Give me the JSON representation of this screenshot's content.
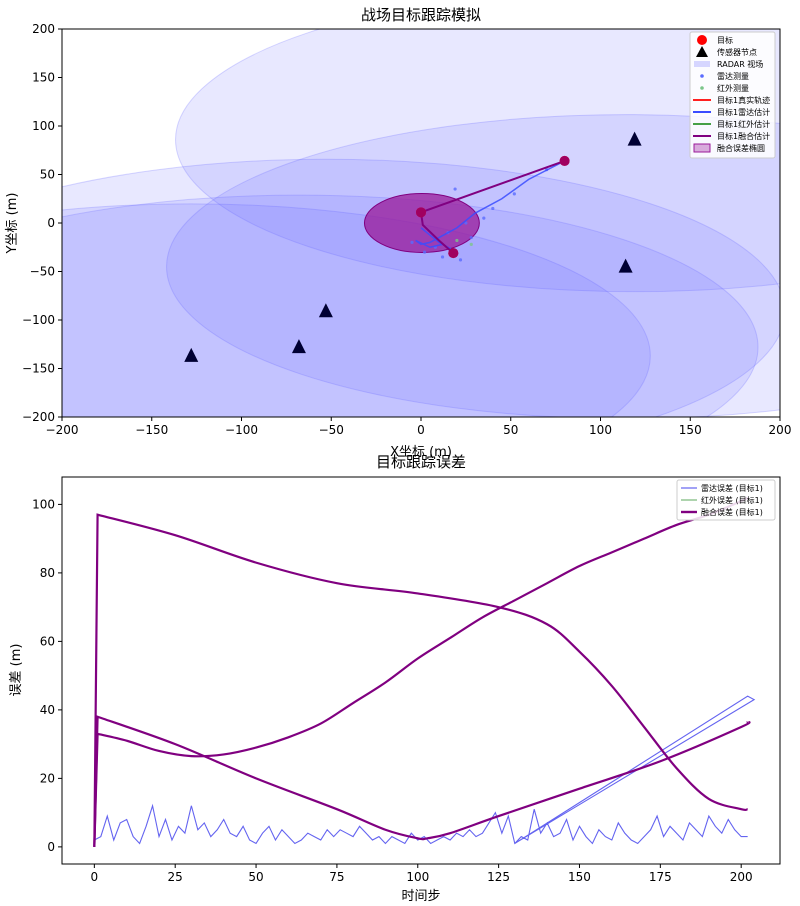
{
  "chart_data": [
    {
      "type": "scatter",
      "title": "战场目标跟踪模拟",
      "xlabel": "X坐标 (m)",
      "ylabel": "Y坐标 (m)",
      "xlim": [
        -200,
        200
      ],
      "ylim": [
        -200,
        200
      ],
      "xticks": [
        -200,
        -150,
        -100,
        -50,
        0,
        50,
        100,
        150,
        200
      ],
      "yticks": [
        -200,
        -150,
        -100,
        -50,
        0,
        50,
        100,
        150,
        200
      ],
      "legend_position": "top-right",
      "legend": [
        "目标",
        "传感器节点",
        "RADAR 视场",
        "雷达测量",
        "红外测量",
        "目标1真实轨迹",
        "目标1雷达估计",
        "目标1红外估计",
        "目标1融合估计",
        "融合误差椭圆"
      ],
      "colors": {
        "target": "#ff0000",
        "sensor": "#000000",
        "fov": "#6464ff",
        "radar_meas": "#5a6cff",
        "ir_meas": "#7cc68a",
        "true_track": "#ff2020",
        "radar_est": "#3a4cff",
        "ir_est": "#46a046",
        "fusion_est": "#800080",
        "error_ellipse": "#9a1a9a"
      },
      "sensors": [
        {
          "x": -128,
          "y": -137
        },
        {
          "x": -68,
          "y": -128
        },
        {
          "x": -53,
          "y": -91
        },
        {
          "x": 114,
          "y": -45
        },
        {
          "x": 119,
          "y": 86
        }
      ],
      "fov_circles": [
        {
          "cx": -128,
          "cy": -137,
          "r": 165
        },
        {
          "cx": -68,
          "cy": -128,
          "r": 165
        },
        {
          "cx": -53,
          "cy": -91,
          "r": 165
        },
        {
          "cx": 114,
          "cy": -45,
          "r": 165
        },
        {
          "cx": 119,
          "cy": 86,
          "r": 165
        }
      ],
      "targets": [
        {
          "x": 80,
          "y": 64
        },
        {
          "x": 0,
          "y": 11
        },
        {
          "x": 18,
          "y": -31
        }
      ],
      "fusion_track": [
        [
          80,
          64
        ],
        [
          0,
          11
        ],
        [
          1,
          -2
        ],
        [
          10,
          -18
        ],
        [
          18,
          -31
        ]
      ],
      "radar_track": [
        [
          80,
          64
        ],
        [
          60,
          45
        ],
        [
          45,
          25
        ],
        [
          30,
          10
        ],
        [
          20,
          -5
        ],
        [
          10,
          -15
        ],
        [
          5,
          -20
        ],
        [
          0,
          -22
        ],
        [
          -3,
          -18
        ],
        [
          5,
          -25
        ],
        [
          12,
          -22
        ],
        [
          18,
          -28
        ],
        [
          10,
          -20
        ],
        [
          0,
          -5
        ]
      ],
      "radar_measurements": [
        [
          70,
          55
        ],
        [
          52,
          30
        ],
        [
          40,
          15
        ],
        [
          25,
          0
        ],
        [
          19,
          35
        ],
        [
          15,
          -10
        ],
        [
          8,
          -25
        ],
        [
          2,
          -30
        ],
        [
          22,
          -38
        ],
        [
          28,
          -15
        ],
        [
          35,
          5
        ],
        [
          12,
          -35
        ],
        [
          -5,
          -20
        ]
      ],
      "ir_measurements": [
        [
          28,
          -22
        ],
        [
          20,
          -18
        ]
      ],
      "error_ellipse": {
        "cx": 0,
        "cy": 0,
        "rx": 32,
        "ry": 32
      }
    },
    {
      "type": "line",
      "title": "目标跟踪误差",
      "xlabel": "时间步",
      "ylabel": "误差 (m)",
      "xlim": [
        -10,
        212
      ],
      "ylim": [
        -5,
        108
      ],
      "xticks": [
        0,
        25,
        50,
        75,
        100,
        125,
        150,
        175,
        200
      ],
      "yticks": [
        0,
        20,
        40,
        60,
        80,
        100
      ],
      "legend_position": "top-right",
      "legend": [
        "雷达误差 (目标1)",
        "红外误差 (目标1)",
        "融合误差 (目标1)"
      ],
      "colors": {
        "radar": "#6464f0",
        "ir": "#78b878",
        "fusion": "#800080"
      },
      "series": [
        {
          "name": "雷达误差 (目标1)",
          "x": [
            0,
            2,
            4,
            6,
            8,
            10,
            12,
            14,
            16,
            18,
            20,
            22,
            24,
            26,
            28,
            30,
            32,
            34,
            36,
            38,
            40,
            42,
            44,
            46,
            48,
            50,
            52,
            54,
            56,
            58,
            60,
            62,
            64,
            66,
            68,
            70,
            72,
            74,
            76,
            78,
            80,
            82,
            84,
            86,
            88,
            90,
            92,
            94,
            96,
            98,
            100,
            102,
            104,
            106,
            108,
            110,
            112,
            114,
            116,
            118,
            120,
            122,
            124,
            126,
            128,
            130,
            202,
            204,
            130,
            132,
            134,
            136,
            138,
            140,
            142,
            144,
            146,
            148,
            150,
            152,
            154,
            156,
            158,
            160,
            162,
            164,
            166,
            168,
            170,
            172,
            174,
            176,
            178,
            180,
            182,
            184,
            186,
            188,
            190,
            192,
            194,
            196,
            198,
            200,
            202
          ],
          "values": [
            2,
            3,
            9,
            2,
            7,
            8,
            3,
            1,
            6,
            12,
            3,
            8,
            2,
            6,
            4,
            12,
            5,
            7,
            3,
            5,
            8,
            4,
            3,
            6,
            2,
            1,
            4,
            6,
            2,
            5,
            3,
            1,
            2,
            4,
            3,
            2,
            5,
            3,
            5,
            4,
            3,
            6,
            4,
            2,
            3,
            1,
            3,
            2,
            1,
            4,
            2,
            3,
            1,
            2,
            3,
            2,
            4,
            3,
            5,
            3,
            4,
            7,
            10,
            4,
            9,
            1,
            44,
            43,
            1,
            3,
            2,
            11,
            4,
            7,
            3,
            4,
            8,
            2,
            6,
            3,
            1,
            5,
            3,
            2,
            7,
            4,
            2,
            1,
            3,
            5,
            9,
            3,
            6,
            4,
            2,
            7,
            5,
            3,
            9,
            6,
            4,
            8,
            5,
            3,
            3
          ]
        },
        {
          "name": "红外误差 (目标1)",
          "x": [],
          "values": []
        },
        {
          "name": "融合误差 (目标1)",
          "x": [
            0,
            1,
            25,
            50,
            75,
            100,
            125,
            140,
            150,
            160,
            170,
            180,
            190,
            200,
            202
          ],
          "values": [
            0,
            97,
            91,
            83,
            77,
            74,
            70,
            65,
            57,
            47,
            35,
            23,
            14,
            11,
            11
          ]
        },
        {
          "name": "融合误差 (目标1)",
          "x": [
            0,
            1,
            10,
            20,
            30,
            40,
            50,
            60,
            70,
            80,
            90,
            100,
            110,
            120,
            130,
            140,
            150,
            160,
            170,
            180,
            190,
            200,
            202
          ],
          "values": [
            0,
            33,
            31,
            28,
            26.5,
            27,
            29,
            32,
            36,
            42,
            48,
            55,
            61,
            67,
            72,
            77,
            82,
            86,
            90,
            94,
            97,
            101,
            102
          ]
        },
        {
          "name": "融合误差 (目标1)",
          "x": [
            0,
            1,
            25,
            50,
            75,
            90,
            100,
            103,
            110,
            125,
            150,
            175,
            200,
            202
          ],
          "values": [
            0,
            38,
            30,
            20,
            11,
            5,
            2.5,
            2.5,
            4,
            9,
            17,
            25,
            35,
            36.5
          ]
        }
      ]
    }
  ]
}
